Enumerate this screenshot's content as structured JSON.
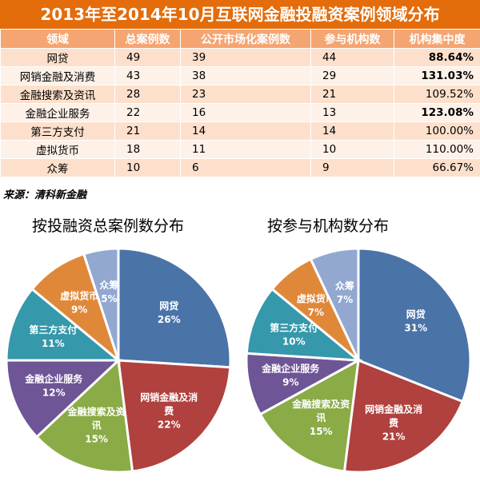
{
  "title": "2013年至2014年10月互联网金融投融资案例领域分布",
  "table": {
    "headers": [
      "领域",
      "总案例数",
      "公开市场化案例数",
      "参与机构数",
      "机构集中度"
    ],
    "rows": [
      {
        "name": "网贷",
        "total": "49",
        "public": "39",
        "institutions": "44",
        "concentration": "88.64%",
        "bold": true
      },
      {
        "name": "网销金融及消费",
        "total": "43",
        "public": "38",
        "institutions": "29",
        "concentration": "131.03%",
        "bold": true
      },
      {
        "name": "金融搜索及资讯",
        "total": "28",
        "public": "23",
        "institutions": "21",
        "concentration": "109.52%",
        "bold": false
      },
      {
        "name": "金融企业服务",
        "total": "22",
        "public": "16",
        "institutions": "13",
        "concentration": "123.08%",
        "bold": true
      },
      {
        "name": "第三方支付",
        "total": "21",
        "public": "14",
        "institutions": "14",
        "concentration": "100.00%",
        "bold": false
      },
      {
        "name": "虚拟货币",
        "total": "18",
        "public": "11",
        "institutions": "10",
        "concentration": "110.00%",
        "bold": false
      },
      {
        "name": "众筹",
        "total": "10",
        "public": "6",
        "institutions": "9",
        "concentration": "66.67%",
        "bold": false
      }
    ]
  },
  "source": "来源：清科新金融",
  "colors": {
    "header_bg": "#e46c0a",
    "th_bg": "#f4a572",
    "网贷": "#4a73a8",
    "网销金融及消费": "#b0413e",
    "金融搜索及资讯": "#8aab46",
    "金融企业服务": "#6e5596",
    "第三方支付": "#3598ab",
    "虚拟货币": "#e0883a",
    "众筹": "#92a8d1"
  },
  "chart_data": [
    {
      "type": "pie",
      "title": "按投融资总案例数分布",
      "series": [
        {
          "name": "网贷",
          "value": 26,
          "label_lines": [
            "网贷",
            "26%"
          ]
        },
        {
          "name": "网销金融及消费",
          "value": 22,
          "label_lines": [
            "网销金融及消",
            "费",
            "22%"
          ]
        },
        {
          "name": "金融搜索及资讯",
          "value": 15,
          "label_lines": [
            "金融搜索及资",
            "讯",
            "15%"
          ]
        },
        {
          "name": "金融企业服务",
          "value": 12,
          "label_lines": [
            "金融企业服务",
            "12%"
          ]
        },
        {
          "name": "第三方支付",
          "value": 11,
          "label_lines": [
            "第三方支付",
            "11%"
          ]
        },
        {
          "name": "虚拟货币",
          "value": 9,
          "label_lines": [
            "虚拟货币",
            "9%"
          ]
        },
        {
          "name": "众筹",
          "value": 5,
          "label_lines": [
            "众筹",
            "5%"
          ]
        }
      ]
    },
    {
      "type": "pie",
      "title": "按参与机构数分布",
      "series": [
        {
          "name": "网贷",
          "value": 31,
          "label_lines": [
            "网贷",
            "31%"
          ]
        },
        {
          "name": "网销金融及消费",
          "value": 21,
          "label_lines": [
            "网销金融及消",
            "费",
            "21%"
          ]
        },
        {
          "name": "金融搜索及资讯",
          "value": 15,
          "label_lines": [
            "金融搜索及资",
            "讯",
            "15%"
          ]
        },
        {
          "name": "金融企业服务",
          "value": 9,
          "label_lines": [
            "金融企业服务",
            "9%"
          ]
        },
        {
          "name": "第三方支付",
          "value": 10,
          "label_lines": [
            "第三方支付",
            "10%"
          ]
        },
        {
          "name": "虚拟货币",
          "value": 7,
          "label_lines": [
            "虚拟货币",
            "7%"
          ]
        },
        {
          "name": "众筹",
          "value": 7,
          "label_lines": [
            "众筹",
            "7%"
          ]
        }
      ]
    }
  ]
}
